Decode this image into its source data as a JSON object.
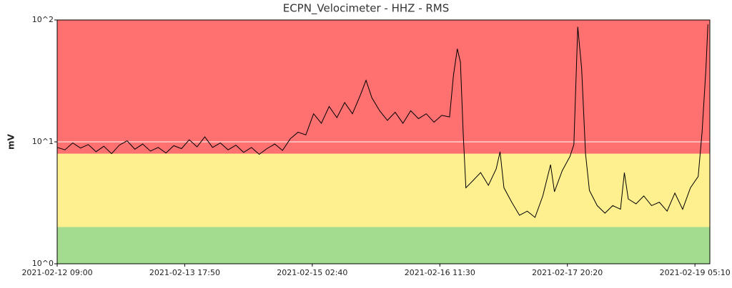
{
  "chart_data": {
    "type": "line",
    "title": "ECPN_Velocimeter - HHZ - RMS",
    "y_label": "mV",
    "log_scale": true,
    "ylim": [
      1,
      100
    ],
    "yticks": [
      {
        "value": 1,
        "label": "10^0"
      },
      {
        "value": 10,
        "label": "10^1"
      },
      {
        "value": 100,
        "label": "10^2"
      }
    ],
    "xlim": [
      "2021-02-12 09:00",
      "2021-02-19 09:00"
    ],
    "xticks": [
      "2021-02-12 09:00",
      "2021-02-13 17:50",
      "2021-02-15 02:40",
      "2021-02-16 11:30",
      "2021-02-17 20:20",
      "2021-02-19 05:10"
    ],
    "bands": [
      {
        "range": [
          1,
          2
        ],
        "color": "#a3db8f"
      },
      {
        "range": [
          2,
          8
        ],
        "color": "#fff08f"
      },
      {
        "range": [
          8,
          100
        ],
        "color": "#ff7070"
      }
    ],
    "grid_color": "#ffffff",
    "color": "#000000",
    "x": [
      "2021-02-12 09:00",
      "2021-02-12 11:00",
      "2021-02-12 13:00",
      "2021-02-12 15:00",
      "2021-02-12 17:00",
      "2021-02-12 19:00",
      "2021-02-12 21:00",
      "2021-02-12 23:00",
      "2021-02-13 01:00",
      "2021-02-13 03:00",
      "2021-02-13 05:00",
      "2021-02-13 07:00",
      "2021-02-13 09:00",
      "2021-02-13 11:00",
      "2021-02-13 13:00",
      "2021-02-13 15:00",
      "2021-02-13 17:00",
      "2021-02-13 19:00",
      "2021-02-13 21:00",
      "2021-02-13 23:00",
      "2021-02-14 01:00",
      "2021-02-14 03:00",
      "2021-02-14 05:00",
      "2021-02-14 07:00",
      "2021-02-14 09:00",
      "2021-02-14 11:00",
      "2021-02-14 13:00",
      "2021-02-14 15:00",
      "2021-02-14 17:00",
      "2021-02-14 19:00",
      "2021-02-14 21:00",
      "2021-02-14 23:00",
      "2021-02-15 01:00",
      "2021-02-15 03:00",
      "2021-02-15 05:00",
      "2021-02-15 07:00",
      "2021-02-15 09:00",
      "2021-02-15 11:00",
      "2021-02-15 13:00",
      "2021-02-15 15:00",
      "2021-02-15 16:30",
      "2021-02-15 18:00",
      "2021-02-15 20:00",
      "2021-02-15 22:00",
      "2021-02-16 00:00",
      "2021-02-16 02:00",
      "2021-02-16 04:00",
      "2021-02-16 06:00",
      "2021-02-16 08:00",
      "2021-02-16 10:00",
      "2021-02-16 12:00",
      "2021-02-16 14:00",
      "2021-02-16 15:00",
      "2021-02-16 16:00",
      "2021-02-16 16:48",
      "2021-02-16 17:30",
      "2021-02-16 18:12",
      "2021-02-16 20:00",
      "2021-02-16 22:00",
      "2021-02-17 00:00",
      "2021-02-17 02:00",
      "2021-02-17 03:00",
      "2021-02-17 04:00",
      "2021-02-17 06:00",
      "2021-02-17 08:00",
      "2021-02-17 10:00",
      "2021-02-17 12:00",
      "2021-02-17 14:00",
      "2021-02-17 16:00",
      "2021-02-17 17:00",
      "2021-02-17 19:00",
      "2021-02-17 21:00",
      "2021-02-17 22:00",
      "2021-02-17 23:00",
      "2021-02-18 00:00",
      "2021-02-18 01:00",
      "2021-02-18 02:00",
      "2021-02-18 04:00",
      "2021-02-18 06:00",
      "2021-02-18 08:00",
      "2021-02-18 10:00",
      "2021-02-18 11:00",
      "2021-02-18 12:00",
      "2021-02-18 14:00",
      "2021-02-18 16:00",
      "2021-02-18 18:00",
      "2021-02-18 20:00",
      "2021-02-18 22:00",
      "2021-02-19 00:00",
      "2021-02-19 02:00",
      "2021-02-19 04:00",
      "2021-02-19 06:00",
      "2021-02-19 07:00",
      "2021-02-19 08:00",
      "2021-02-19 08:30"
    ],
    "values": [
      9.0,
      8.6,
      9.8,
      8.9,
      9.5,
      8.3,
      9.2,
      8.0,
      9.4,
      10.2,
      8.7,
      9.6,
      8.4,
      9.0,
      8.1,
      9.3,
      8.8,
      10.4,
      9.1,
      11.0,
      9.0,
      9.8,
      8.6,
      9.4,
      8.2,
      9.0,
      7.9,
      8.8,
      9.6,
      8.5,
      10.6,
      12.0,
      11.4,
      17.0,
      14.2,
      19.5,
      15.8,
      21.0,
      17.0,
      24.0,
      32.0,
      23.0,
      18.0,
      15.0,
      17.5,
      14.2,
      18.0,
      15.5,
      17.0,
      14.5,
      16.5,
      16.0,
      35.0,
      58.0,
      45.0,
      12.0,
      4.2,
      4.8,
      5.6,
      4.4,
      6.0,
      8.3,
      4.2,
      3.2,
      2.5,
      2.7,
      2.4,
      3.6,
      6.5,
      3.9,
      5.8,
      7.6,
      9.5,
      88.0,
      40.0,
      8.0,
      4.0,
      3.0,
      2.6,
      3.0,
      2.8,
      5.6,
      3.4,
      3.1,
      3.6,
      3.0,
      3.2,
      2.7,
      3.8,
      2.8,
      4.2,
      5.2,
      12.0,
      40.0,
      92.0
    ]
  }
}
